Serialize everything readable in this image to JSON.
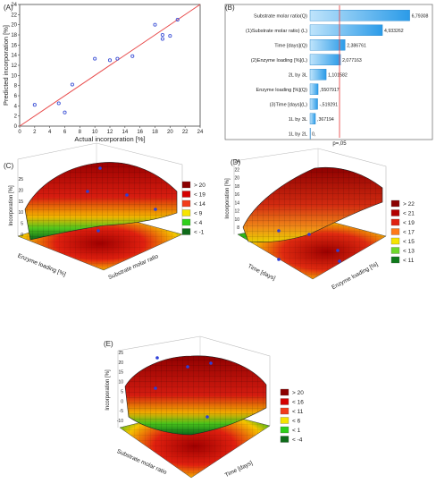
{
  "chart_data": [
    {
      "panel": "(A)",
      "type": "scatter",
      "xlabel": "Actual incorporation [%]",
      "ylabel": "Predicted incorporation [%]",
      "xlim": [
        0,
        24
      ],
      "ylim": [
        0,
        24
      ],
      "xticks": [
        "0",
        "2",
        "4",
        "6",
        "8",
        "10",
        "12",
        "14",
        "16",
        "18",
        "20",
        "22",
        "24"
      ],
      "yticks": [
        "0",
        "2",
        "4",
        "6",
        "8",
        "10",
        "12",
        "14",
        "16",
        "18",
        "20",
        "22",
        "24"
      ],
      "grid": false,
      "points": [
        {
          "x": 2,
          "y": 4.2
        },
        {
          "x": 5.2,
          "y": 4.5
        },
        {
          "x": 6,
          "y": 2.7
        },
        {
          "x": 7,
          "y": 8.2
        },
        {
          "x": 10,
          "y": 13.3
        },
        {
          "x": 12,
          "y": 13
        },
        {
          "x": 13,
          "y": 13.3
        },
        {
          "x": 15,
          "y": 13.8
        },
        {
          "x": 18,
          "y": 20
        },
        {
          "x": 19,
          "y": 18
        },
        {
          "x": 19,
          "y": 17.2
        },
        {
          "x": 20,
          "y": 17.8
        },
        {
          "x": 21,
          "y": 21
        }
      ],
      "fit_line": [
        [
          0,
          0
        ],
        [
          24,
          24
        ]
      ]
    },
    {
      "panel": "(B)",
      "type": "bar",
      "orientation": "horizontal",
      "categories": [
        "Substrate molar ratio(Q)",
        "(1)Substrate molar ratio) (L)",
        "Time [days](Q)",
        "(2)Enzyme loading [%](L)",
        "2L by 3L",
        "Enzyme loading [%](Q)",
        "(3)Time [days](L)",
        "1L by 3L",
        "1L by 2L"
      ],
      "values": [
        6.79308,
        4.933262,
        2.386761,
        2.077163,
        1.101582,
        0.5507917,
        -0.519291,
        0.367194,
        0.0
      ],
      "value_labels": [
        "6,79308",
        "4,933262",
        "2,386761",
        "2,077163",
        "1,101582",
        ",5507917",
        "-,519291",
        ",367194",
        "0,"
      ],
      "xlim": [
        0,
        7
      ],
      "reference": 2.01,
      "reference_label": "p=,05"
    },
    {
      "panel": "(C)",
      "type": "surface",
      "xlabel": "Substrate molar ratio",
      "ylabel": "Enzyme loading [%]",
      "zlabel": "Incorporation [%]",
      "zticks": [
        "0",
        "5",
        "10",
        "15",
        "20",
        "25"
      ],
      "legend": [
        "> 20",
        "< 19",
        "< 14",
        "< 9",
        "< 4",
        "< -1"
      ],
      "legend_colors": [
        "#8b0000",
        "#d40000",
        "#f23b1b",
        "#f6e400",
        "#2ecf1a",
        "#0f6b1a"
      ]
    },
    {
      "panel": "(D)",
      "type": "surface",
      "xlabel": "Enzyme loading [%]",
      "ylabel": "Time [days]",
      "zlabel": "Incorporation [%]",
      "zticks": [
        "8",
        "10",
        "12",
        "14",
        "16",
        "18",
        "20",
        "22",
        "24"
      ],
      "legend": [
        "> 22",
        "< 21",
        "< 19",
        "< 17",
        "< 15",
        "< 13",
        "< 11"
      ],
      "legend_colors": [
        "#8b0000",
        "#b30000",
        "#e02010",
        "#ff7a1a",
        "#f6e400",
        "#6fd92a",
        "#0f7a1a"
      ]
    },
    {
      "panel": "(E)",
      "type": "surface",
      "xlabel": "Time [days]",
      "ylabel": "Substrate molar ratio",
      "zlabel": "Incorporation [%]",
      "zticks": [
        "-10",
        "-5",
        "0",
        "5",
        "10",
        "15",
        "20",
        "25"
      ],
      "legend": [
        "> 20",
        "< 16",
        "< 11",
        "< 6",
        "< 1",
        "< -4"
      ],
      "legend_colors": [
        "#8b0000",
        "#d40000",
        "#f23b1b",
        "#f6e400",
        "#2ecf1a",
        "#0f6b1a"
      ]
    }
  ]
}
